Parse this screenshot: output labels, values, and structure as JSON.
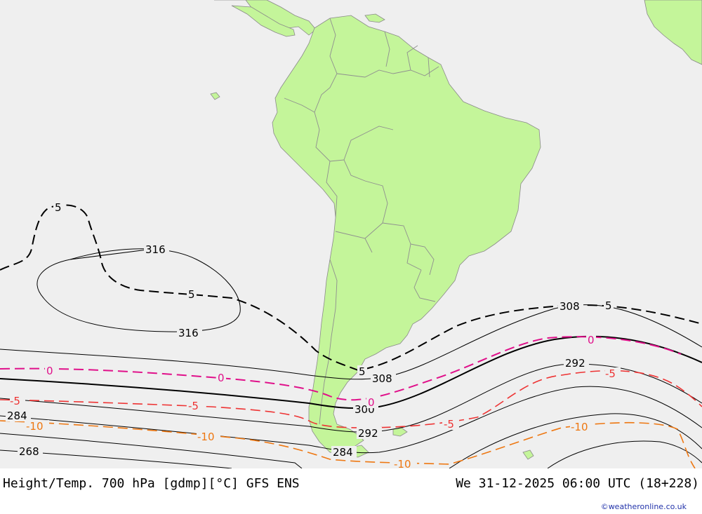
{
  "map": {
    "title": "Height/Temp. 700 hPa [gdmp][°C] GFS ENS",
    "valid_time": "We 31-12-2025 06:00 UTC (18+228)",
    "credit": "©weatheronline.co.uk",
    "colors": {
      "ocean": "#efefef",
      "land": "#c4f59a",
      "border": "#999999",
      "height_contour": "#000000",
      "temp_contour_warm": "#000000",
      "temp_contour_zero": "#e0108a",
      "temp_contour_minus5": "#ee3333",
      "temp_contour_minus10": "#ee7711"
    },
    "height_contours_gdmp": [
      {
        "value": "316",
        "labels": [
          "316",
          "316"
        ]
      },
      {
        "value": "308",
        "labels": [
          "308",
          "308"
        ]
      },
      {
        "value": "300",
        "labels": [
          "300"
        ]
      },
      {
        "value": "292",
        "labels": [
          "292",
          "292"
        ]
      },
      {
        "value": "284",
        "labels": [
          "284",
          "284"
        ]
      },
      {
        "value": "268",
        "labels": [
          "268"
        ]
      }
    ],
    "temperature_contours_c": [
      {
        "value": "5",
        "labels": [
          "5",
          "5",
          "5",
          "5"
        ]
      },
      {
        "value": "0",
        "labels": [
          "0",
          "0",
          "0",
          "0"
        ]
      },
      {
        "value": "-5",
        "labels": [
          "-5",
          "-5",
          "-5",
          "-5"
        ]
      },
      {
        "value": "-10",
        "labels": [
          "-10",
          "-10",
          "-10",
          "-10"
        ]
      }
    ]
  }
}
